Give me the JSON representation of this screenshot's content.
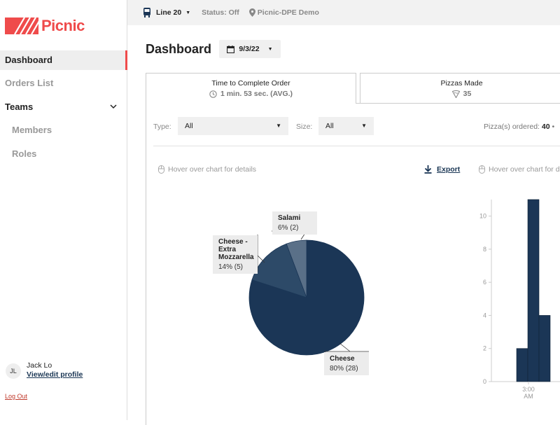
{
  "brand": {
    "name": "Picnic",
    "accent": "#ef4b4b"
  },
  "sidebar": {
    "items": [
      {
        "label": "Dashboard"
      },
      {
        "label": "Orders List"
      },
      {
        "label": "Teams"
      },
      {
        "label": "Members"
      },
      {
        "label": "Roles"
      }
    ],
    "user": {
      "initials": "JL",
      "name": "Jack Lo",
      "link": "View/edit profile"
    },
    "logout": "Log Out"
  },
  "topbar": {
    "line": "Line 20",
    "status": "Status: Off",
    "location": "Picnic-DPE Demo"
  },
  "page": {
    "title": "Dashboard",
    "date": "9/3/22"
  },
  "tabs": [
    {
      "label": "Time to Complete Order",
      "value": "1 min. 53 sec. (AVG.)"
    },
    {
      "label": "Pizzas Made",
      "value": "35"
    }
  ],
  "filters": {
    "type_label": "Type:",
    "type_value": "All",
    "size_label": "Size:",
    "size_value": "All",
    "ordered_label": "Pizza(s) ordered:",
    "ordered_value": "40"
  },
  "hints": {
    "left": "Hover over chart for details",
    "right": "Hover over chart for details"
  },
  "export_label": "Export",
  "colors": {
    "navy": "#1b3656",
    "slice2": "#2d4a68",
    "slice3": "#5a7088"
  },
  "chart_data": [
    {
      "type": "pie",
      "slices": [
        {
          "label": "Cheese",
          "percent": 80,
          "count": 28,
          "display": "80% (28)"
        },
        {
          "label": "Cheese - Extra Mozzarella",
          "percent": 14,
          "count": 5,
          "display": "14% (5)"
        },
        {
          "label": "Salami",
          "percent": 6,
          "count": 2,
          "display": "6% (2)"
        }
      ]
    },
    {
      "type": "bar",
      "ylim": [
        0,
        11
      ],
      "yticks": [
        "0",
        "2",
        "4",
        "6",
        "8",
        "10"
      ],
      "xticks": [
        {
          "line1": "3:00",
          "line2": "AM"
        }
      ],
      "values": [
        2,
        11,
        4
      ]
    }
  ]
}
